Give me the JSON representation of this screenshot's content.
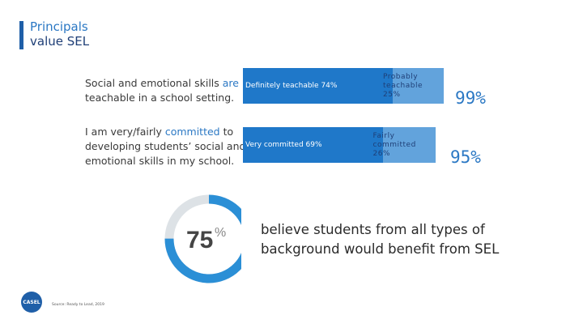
{
  "title": {
    "line1": "Principals",
    "line2": "value SEL"
  },
  "statements": [
    {
      "pre": "Social and emotional skills ",
      "highlight": "are",
      "post": " teachable in a school setting."
    },
    {
      "pre": "I am very/fairly ",
      "highlight": "committed",
      "post": " to developing students’ social and emotional skills in my school."
    }
  ],
  "chart_data": [
    {
      "type": "bar",
      "orientation": "horizontal-stacked",
      "xlim": [
        0,
        100
      ],
      "categories": [
        "Social and emotional skills are teachable in a school setting.",
        "I am very/fairly committed to developing students’ social and emotional skills in my school."
      ],
      "rows": [
        {
          "segments": [
            {
              "label": "Definitely teachable 74%",
              "value": 74,
              "color": "#1f78c9",
              "text_color": "#ffffff"
            },
            {
              "label": "Probably teachable 25%",
              "value": 25,
              "color": "#62a3dc",
              "text_color": "#ffffff"
            }
          ],
          "total": "99%"
        },
        {
          "segments": [
            {
              "label": "Very committed 69%",
              "value": 69,
              "color": "#1f78c9",
              "text_color": "#ffffff"
            },
            {
              "label": "Fairly committed 26%",
              "value": 26,
              "color": "#62a3dc",
              "text_color": "#ffffff"
            }
          ],
          "total": "95%"
        }
      ]
    },
    {
      "type": "pie",
      "style": "donut",
      "value": 75,
      "label_number": "75",
      "label_unit": "%",
      "colors": {
        "fill": "#2b8fd6",
        "track": "#dde2e6"
      },
      "caption": "believe students from all types of background would benefit from SEL"
    }
  ],
  "logo": {
    "text": "CASEL"
  },
  "source": "Source: Ready to Lead, 2019"
}
